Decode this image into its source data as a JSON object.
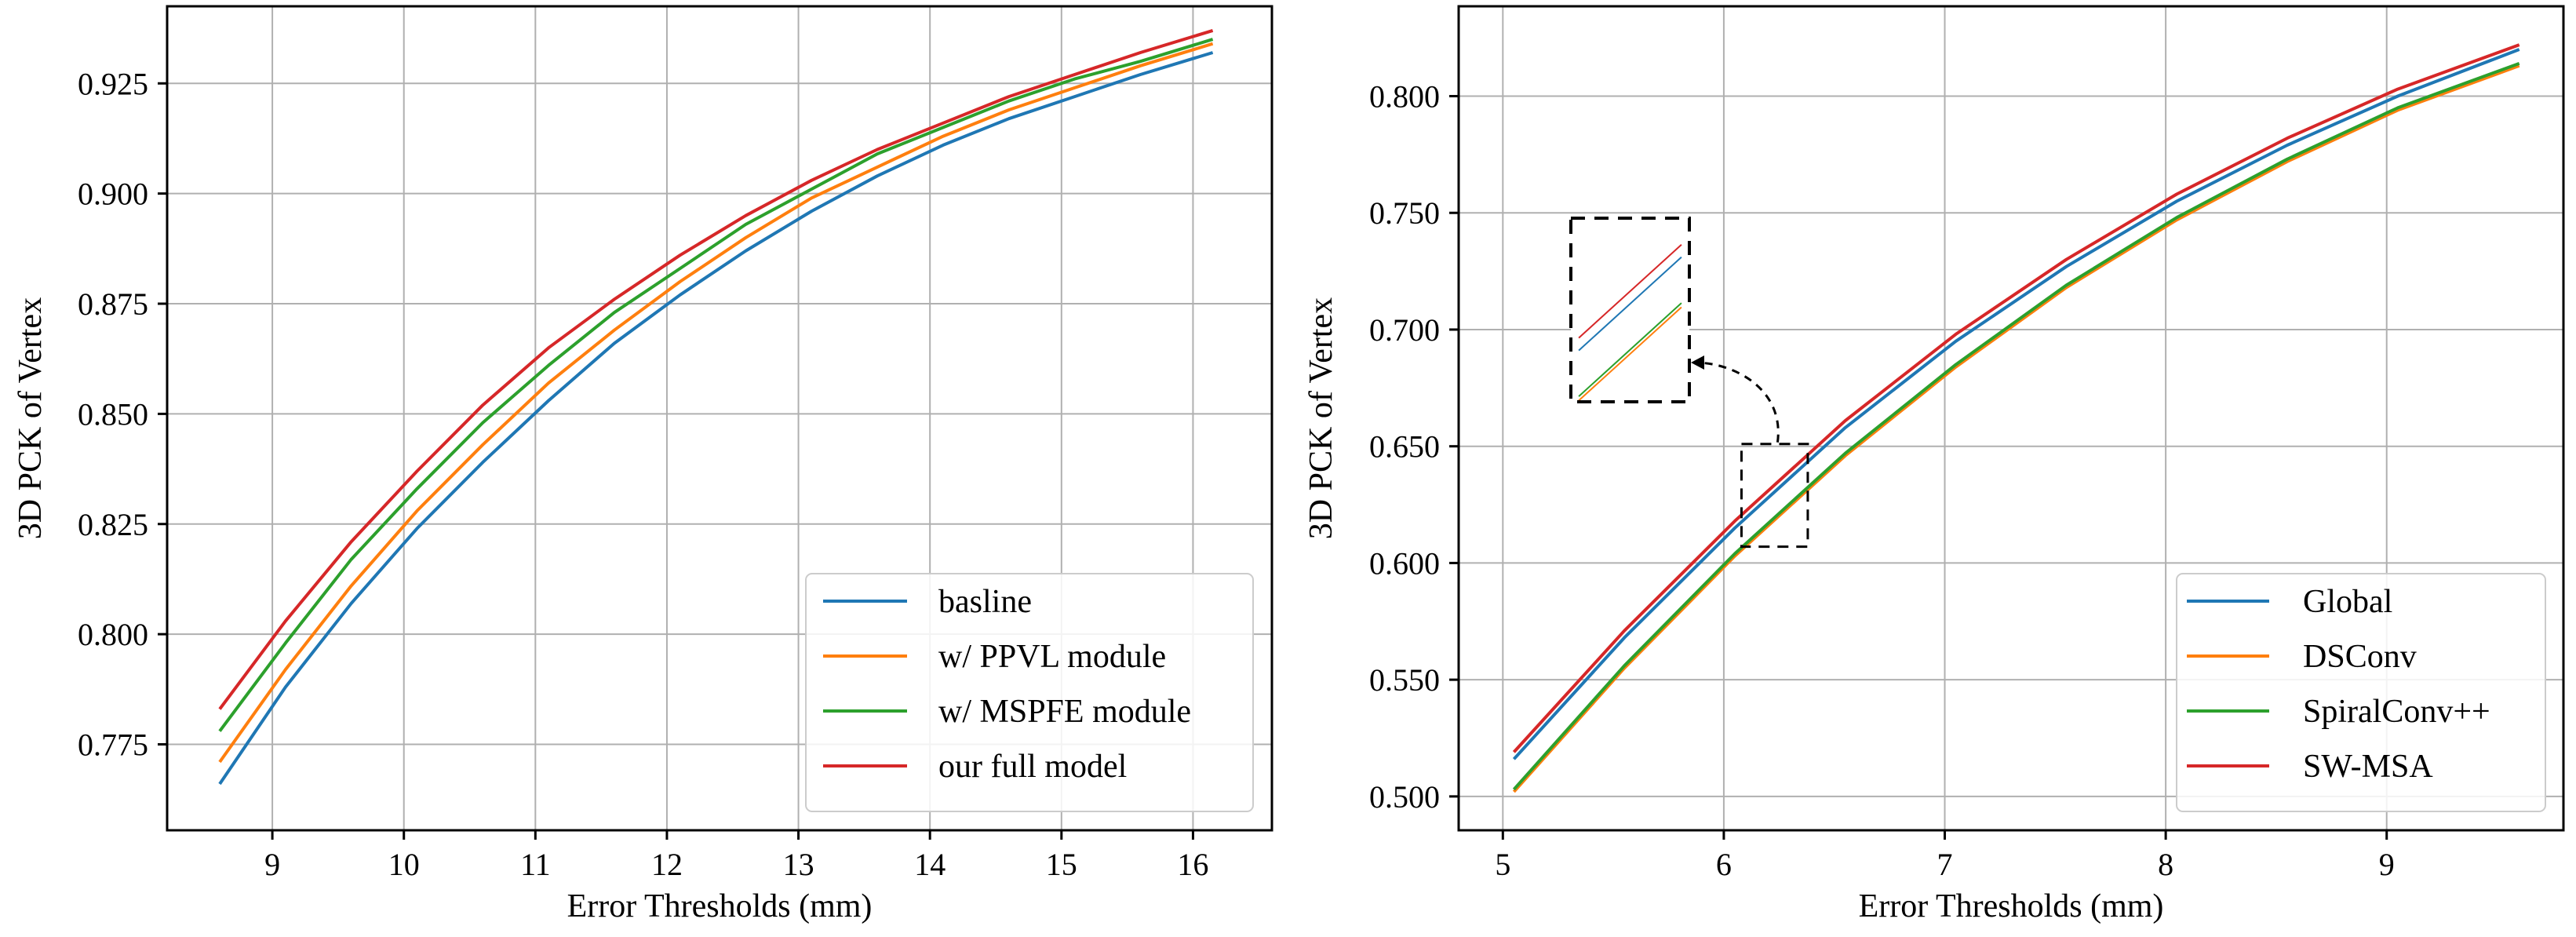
{
  "chart_data": [
    {
      "type": "line",
      "xlabel": "Error Thresholds (mm)",
      "ylabel": "3D PCK of Vertex",
      "xlim": [
        8.2,
        16.6
      ],
      "ylim": [
        0.7555,
        0.9425
      ],
      "xticks": [
        9,
        10,
        11,
        12,
        13,
        14,
        15,
        16
      ],
      "xtick_labels": [
        "9",
        "10",
        "11",
        "12",
        "13",
        "14",
        "15",
        "16"
      ],
      "yticks": [
        0.775,
        0.8,
        0.825,
        0.85,
        0.875,
        0.9,
        0.925
      ],
      "ytick_labels": [
        "0.775",
        "0.800",
        "0.825",
        "0.850",
        "0.875",
        "0.900",
        "0.925"
      ],
      "grid": true,
      "legend_position": "lower-right",
      "x": [
        8.6,
        9.1,
        9.6,
        10.1,
        10.6,
        11.1,
        11.6,
        12.1,
        12.6,
        13.1,
        13.6,
        14.1,
        14.6,
        15.1,
        15.6,
        16.15
      ],
      "series": [
        {
          "name": "basline",
          "color": "#1f77b4",
          "values": [
            0.766,
            0.788,
            0.807,
            0.824,
            0.839,
            0.853,
            0.866,
            0.877,
            0.887,
            0.896,
            0.904,
            0.911,
            0.917,
            0.922,
            0.927,
            0.932
          ]
        },
        {
          "name": "w/ PPVL module",
          "color": "#ff7f0e",
          "values": [
            0.771,
            0.792,
            0.811,
            0.828,
            0.843,
            0.857,
            0.869,
            0.88,
            0.89,
            0.899,
            0.906,
            0.913,
            0.919,
            0.924,
            0.929,
            0.934
          ]
        },
        {
          "name": "w/ MSPFE module",
          "color": "#2ca02c",
          "values": [
            0.778,
            0.798,
            0.817,
            0.833,
            0.848,
            0.861,
            0.873,
            0.883,
            0.893,
            0.901,
            0.909,
            0.915,
            0.921,
            0.926,
            0.93,
            0.935
          ]
        },
        {
          "name": "our full model",
          "color": "#d62728",
          "values": [
            0.783,
            0.803,
            0.821,
            0.837,
            0.852,
            0.865,
            0.876,
            0.886,
            0.895,
            0.903,
            0.91,
            0.916,
            0.922,
            0.927,
            0.932,
            0.937
          ]
        }
      ]
    },
    {
      "type": "line",
      "xlabel": "Error Thresholds (mm)",
      "ylabel": "3D PCK of Vertex",
      "xlim": [
        4.8,
        9.8
      ],
      "ylim": [
        0.4855,
        0.8385
      ],
      "xticks": [
        5,
        6,
        7,
        8,
        9
      ],
      "xtick_labels": [
        "5",
        "6",
        "7",
        "8",
        "9"
      ],
      "yticks": [
        0.5,
        0.55,
        0.6,
        0.65,
        0.7,
        0.75,
        0.8
      ],
      "ytick_labels": [
        "0.500",
        "0.550",
        "0.600",
        "0.650",
        "0.700",
        "0.750",
        "0.800"
      ],
      "grid": true,
      "legend_position": "lower-right",
      "x": [
        5.05,
        5.55,
        6.05,
        6.55,
        7.05,
        7.55,
        8.05,
        8.55,
        9.05,
        9.6
      ],
      "series": [
        {
          "name": "Global",
          "color": "#1f77b4",
          "values": [
            0.516,
            0.568,
            0.615,
            0.658,
            0.695,
            0.727,
            0.755,
            0.779,
            0.8,
            0.82
          ]
        },
        {
          "name": "DSConv",
          "color": "#ff7f0e",
          "values": [
            0.502,
            0.555,
            0.603,
            0.646,
            0.684,
            0.718,
            0.747,
            0.772,
            0.794,
            0.813
          ]
        },
        {
          "name": "SpiralConv++",
          "color": "#2ca02c",
          "values": [
            0.503,
            0.556,
            0.604,
            0.647,
            0.685,
            0.719,
            0.748,
            0.773,
            0.795,
            0.814
          ]
        },
        {
          "name": "SW-MSA",
          "color": "#d62728",
          "values": [
            0.519,
            0.571,
            0.618,
            0.661,
            0.698,
            0.73,
            0.758,
            0.782,
            0.803,
            0.822
          ]
        }
      ],
      "inset_zoom": {
        "xlim": [
          6.08,
          6.38
        ],
        "ylim": [
          0.607,
          0.651
        ]
      }
    }
  ]
}
